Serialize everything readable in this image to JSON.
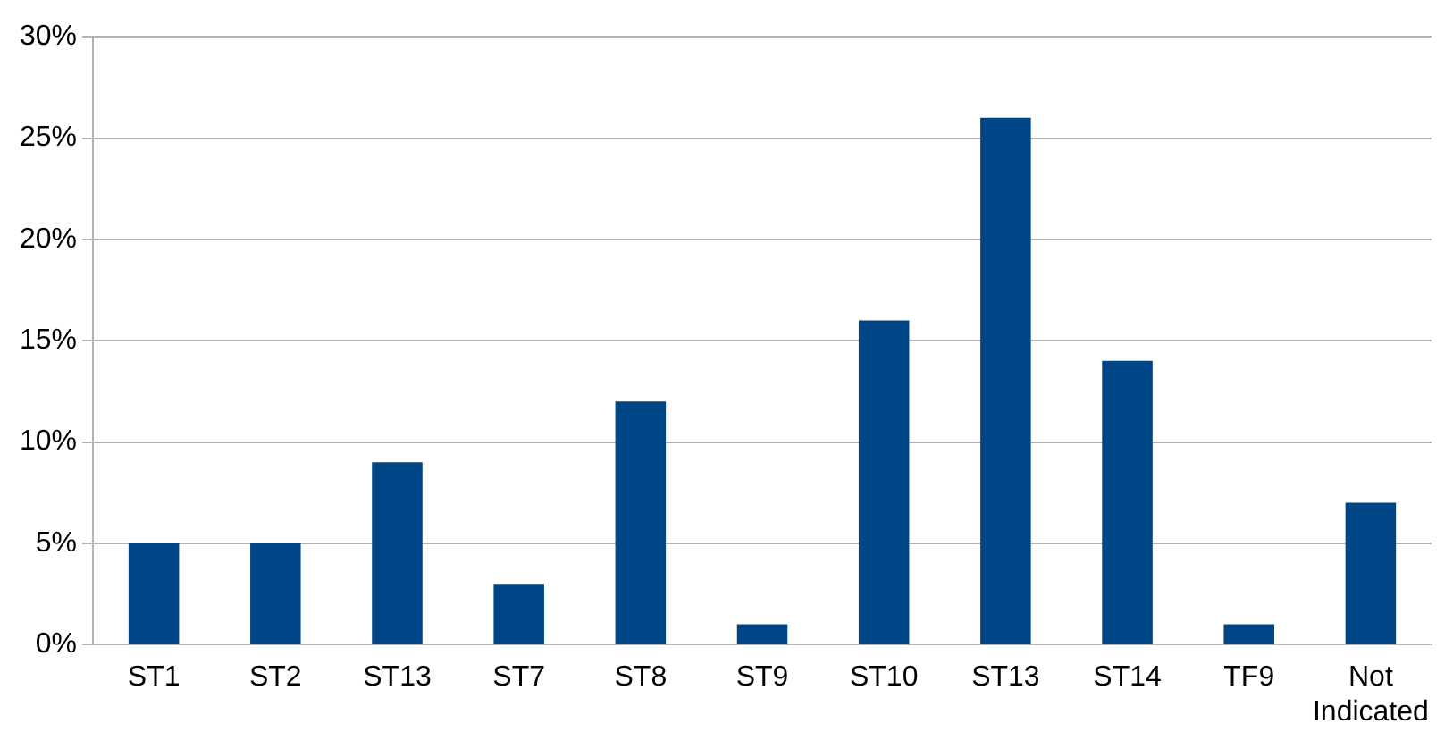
{
  "chart_data": {
    "type": "bar",
    "categories": [
      "ST1",
      "ST2",
      "ST13",
      "ST7",
      "ST8",
      "ST9",
      "ST10",
      "ST13",
      "ST14",
      "TF9",
      "Not Indicated"
    ],
    "values": [
      5,
      5,
      9,
      3,
      12,
      1,
      16,
      26,
      14,
      1,
      7
    ],
    "color": "#004586",
    "ylim": [
      0,
      30
    ],
    "yticks": [
      {
        "value": 0,
        "label": "0%"
      },
      {
        "value": 5,
        "label": "5%"
      },
      {
        "value": 10,
        "label": "10%"
      },
      {
        "value": 15,
        "label": "15%"
      },
      {
        "value": 20,
        "label": "20%"
      },
      {
        "value": 25,
        "label": "25%"
      },
      {
        "value": 30,
        "label": "30%"
      }
    ],
    "grid": "y",
    "legend": false
  }
}
